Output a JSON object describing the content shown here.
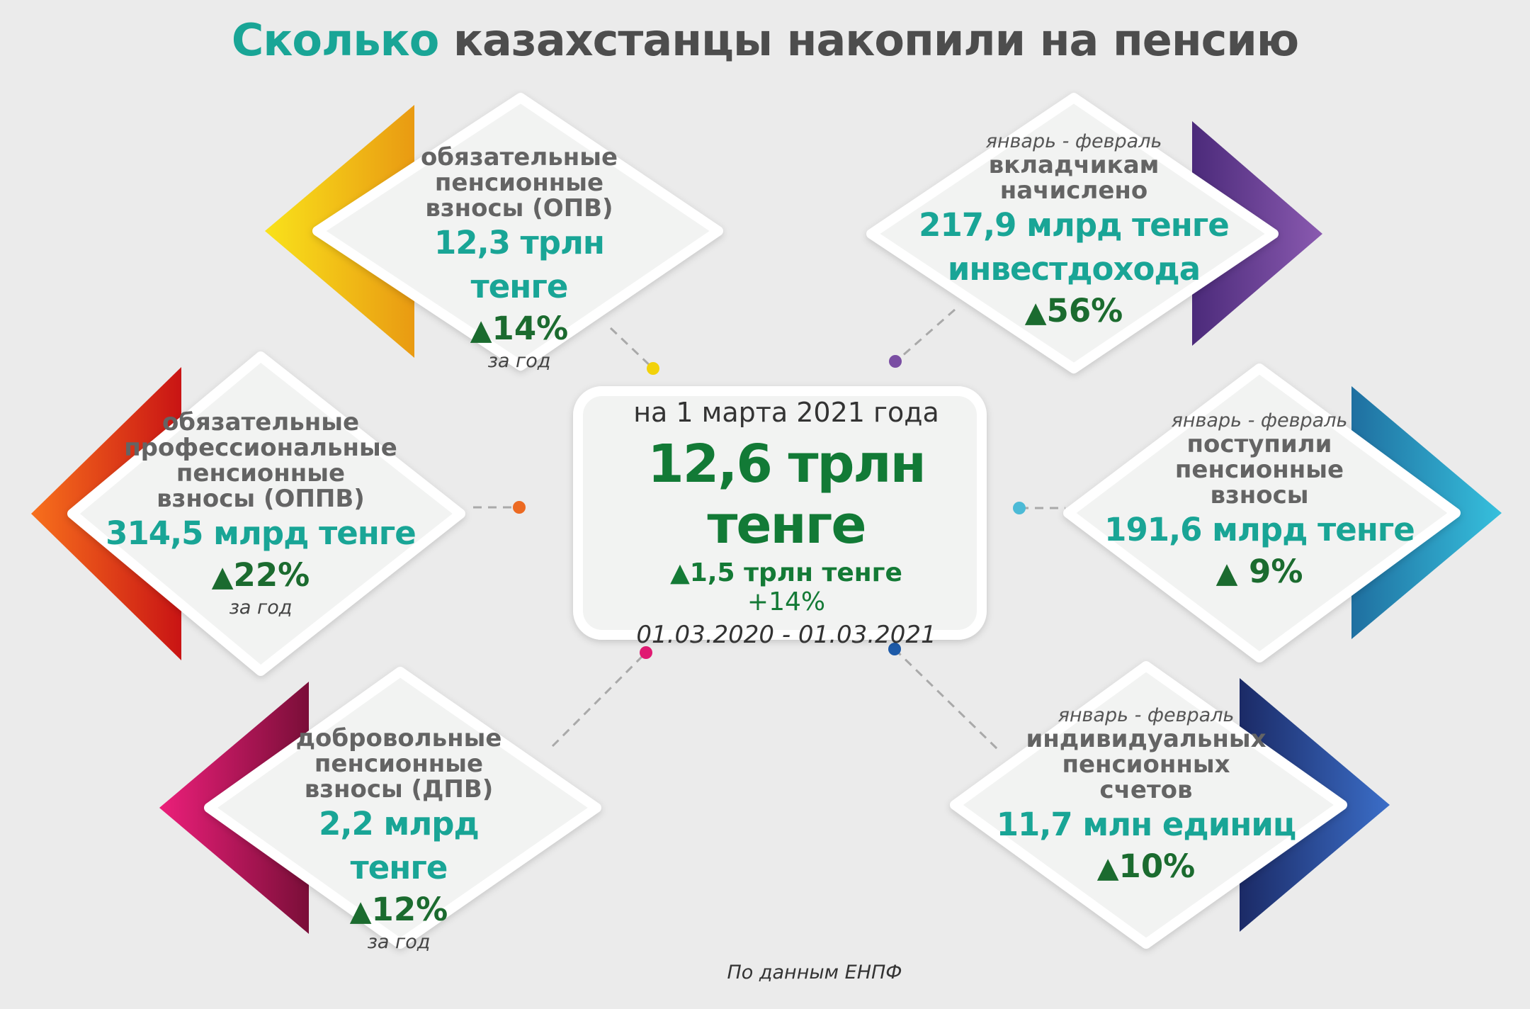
{
  "title": {
    "accent": "Сколько",
    "rest": "казахстанцы накопили на пенсию"
  },
  "center": {
    "date": "на 1 марта 2021 года",
    "total": "12,6 трлн тенге",
    "delta": "1,5 трлн тенге",
    "percent": "+14%",
    "range": "01.03.2020 - 01.03.2021"
  },
  "cards": {
    "opv": {
      "label_lines": [
        "обязательные",
        "пенсионные",
        "взносы (ОПВ)"
      ],
      "value": "12,3 трлн тенге",
      "growth": "14%",
      "note": "за год",
      "color": "#f2b705"
    },
    "oppv": {
      "label_lines": [
        "обязательные",
        "профессиональные",
        "пенсионные",
        "взносы (ОППВ)"
      ],
      "value": "314,5 млрд тенге",
      "growth": "22%",
      "note": "за год",
      "color": "#e8501a"
    },
    "dpv": {
      "label_lines": [
        "добровольные",
        "пенсионные",
        "взносы (ДПВ)"
      ],
      "value": "2,2 млрд тенге",
      "growth": "12%",
      "note": "за год",
      "color": "#d4145a"
    },
    "invest": {
      "period": "январь - февраль",
      "label_lines": [
        "вкладчикам",
        "начислено"
      ],
      "value_lines": [
        "217,9 млрд тенге",
        "инвестдохода"
      ],
      "growth": "56%",
      "color": "#6b3e96"
    },
    "contrib": {
      "period": "январь - февраль",
      "label_lines": [
        "поступили",
        "пенсионные",
        "взносы"
      ],
      "value": "191,6 млрд тенге",
      "growth": "9%",
      "color": "#2aa7d0"
    },
    "accounts": {
      "period": "январь - февраль",
      "label_lines": [
        "индивидуальных",
        "пенсионных",
        "счетов"
      ],
      "value": "11,7 млн единиц",
      "growth": "10%",
      "color": "#2c4a9e"
    }
  },
  "triangle": "▲",
  "source": "По данным ЕНПФ"
}
